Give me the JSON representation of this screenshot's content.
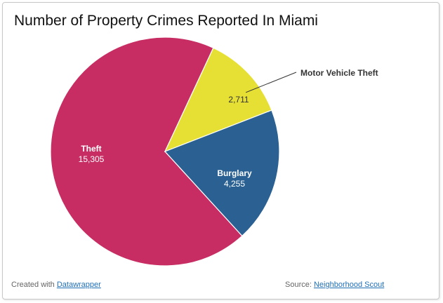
{
  "chart_data": {
    "type": "pie",
    "title": "Number of Property Crimes Reported In Miami",
    "slices": [
      {
        "label": "Theft",
        "value": 15305,
        "display": "15,305",
        "color": "#c72d62"
      },
      {
        "label": "Motor Vehicle Theft",
        "value": 2711,
        "display": "2,711",
        "color": "#e6e035"
      },
      {
        "label": "Burglary",
        "value": 4255,
        "display": "4,255",
        "color": "#2a6192"
      }
    ]
  },
  "footer": {
    "created_prefix": "Created with",
    "created_link": "Datawrapper",
    "source_prefix": "Source:",
    "source_link": "Neighborhood Scout"
  }
}
